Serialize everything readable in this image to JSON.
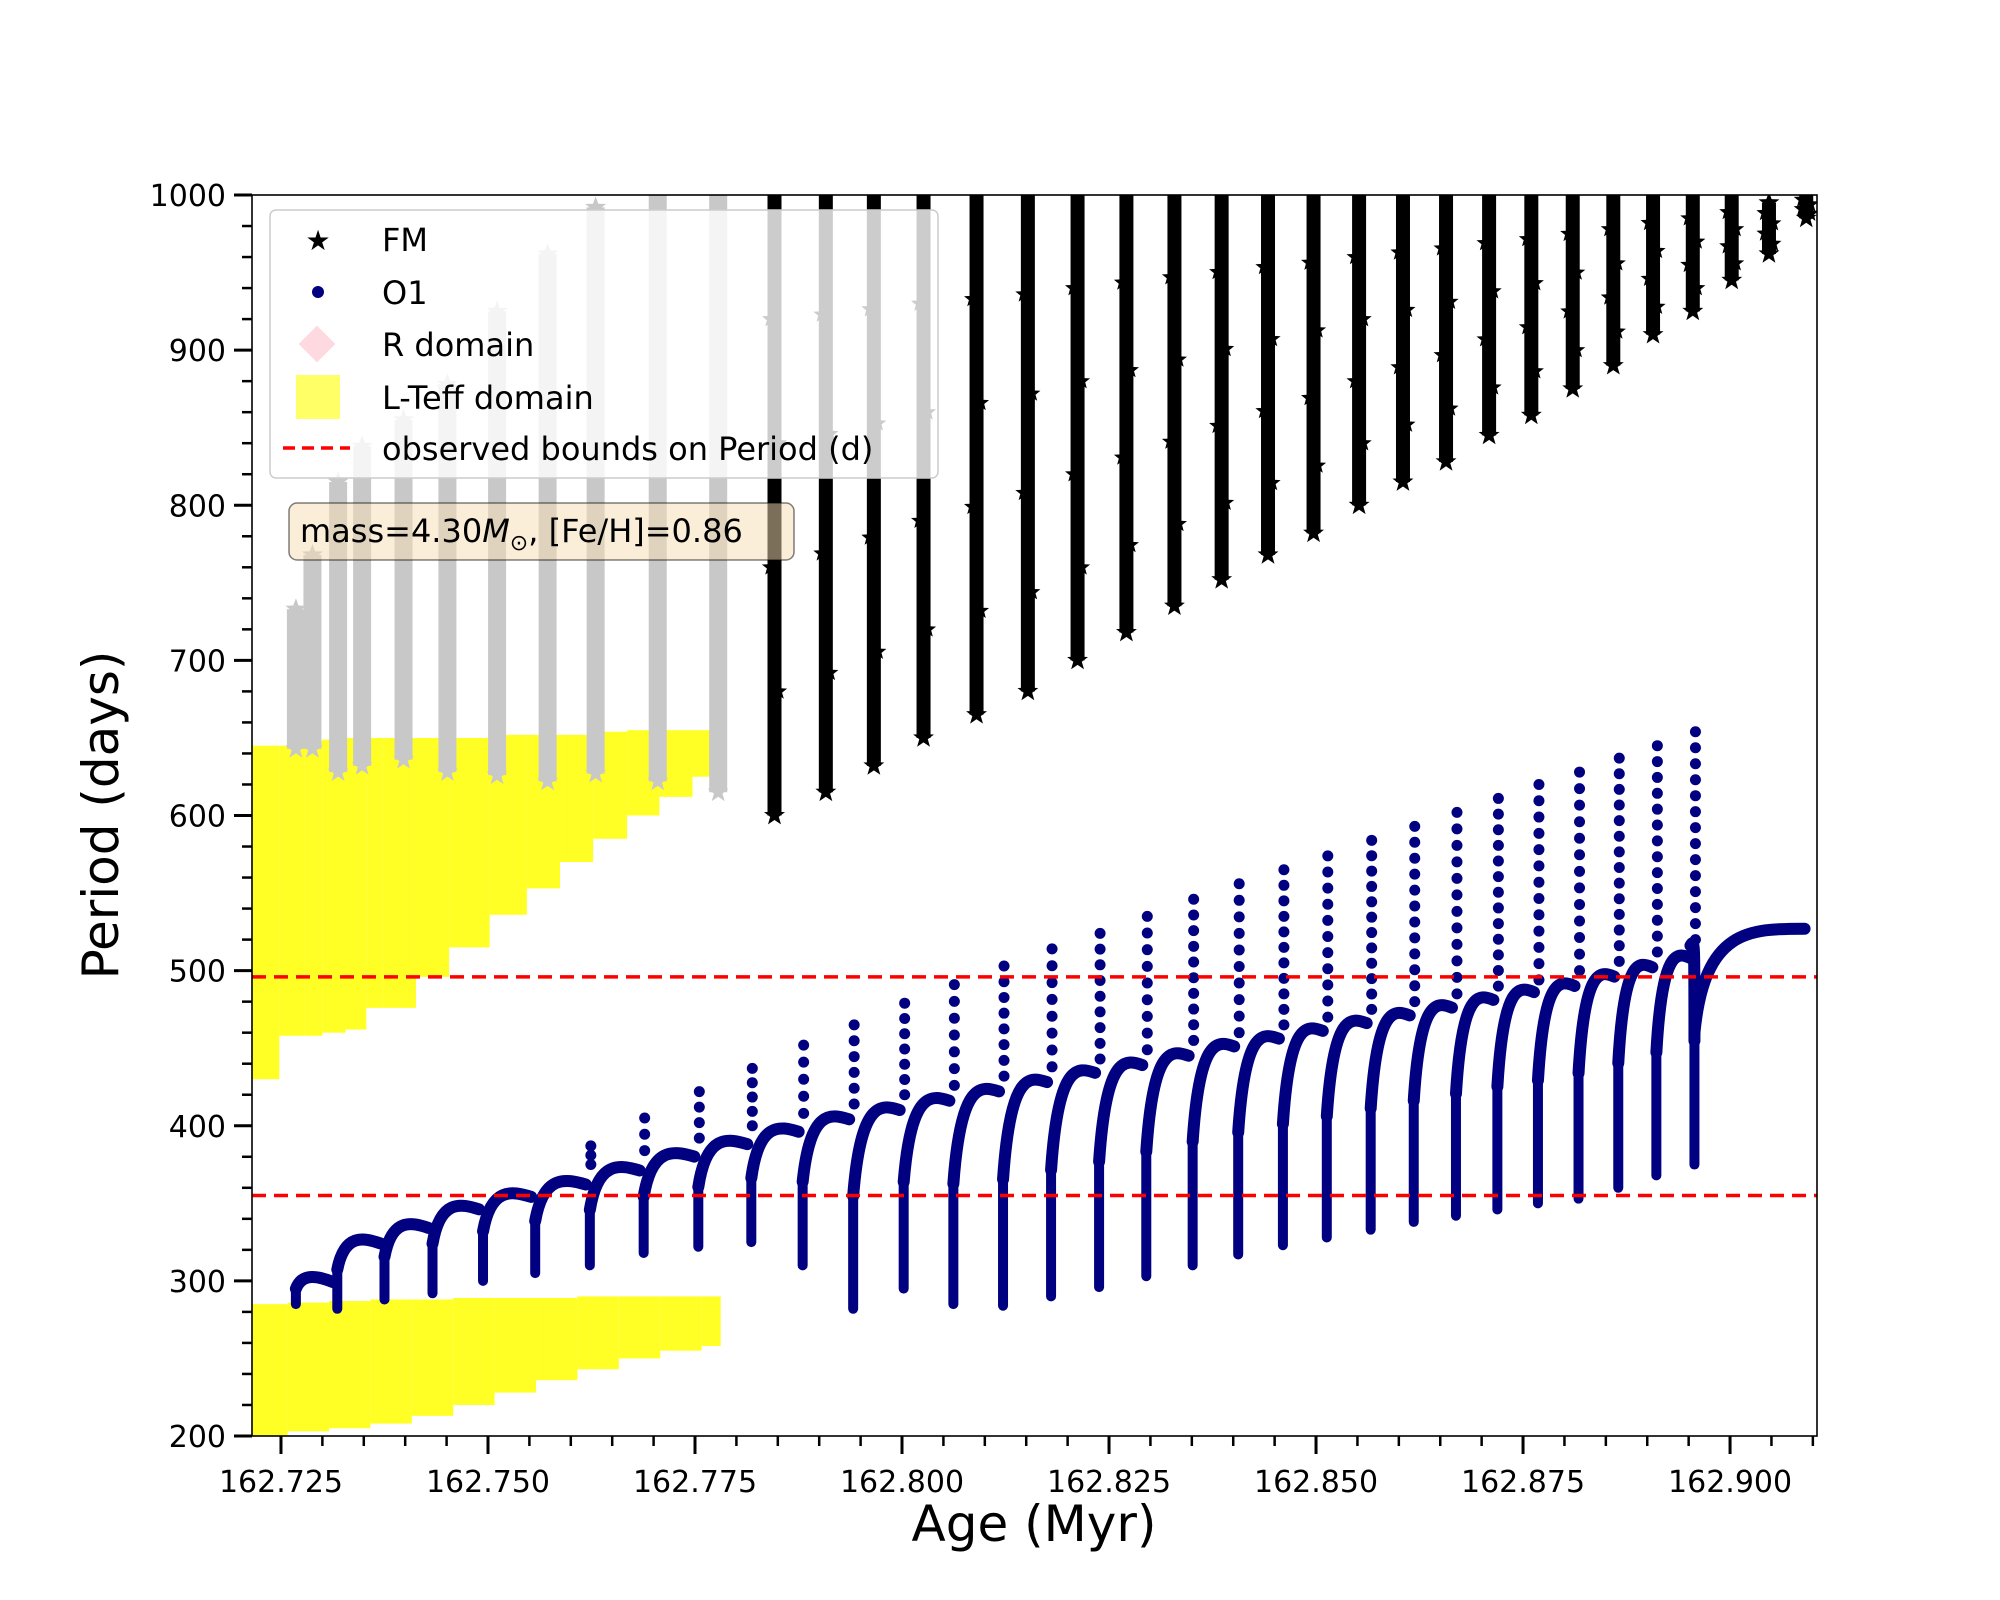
{
  "chart_data": {
    "type": "scatter",
    "title": "",
    "xlabel": "Age (Myr)",
    "ylabel": "Period (days)",
    "xlim": [
      162.7215,
      162.9105
    ],
    "ylim": [
      200,
      1000
    ],
    "x_ticks": [
      162.725,
      162.75,
      162.775,
      162.8,
      162.825,
      162.85,
      162.875,
      162.9
    ],
    "x_tick_labels": [
      "162.725",
      "162.750",
      "162.775",
      "162.800",
      "162.825",
      "162.850",
      "162.875",
      "162.900"
    ],
    "y_ticks": [
      200,
      300,
      400,
      500,
      600,
      700,
      800,
      900,
      1000
    ],
    "y_tick_labels": [
      "200",
      "300",
      "400",
      "500",
      "600",
      "700",
      "800",
      "900",
      "1000"
    ],
    "grid": false,
    "legend_placement": "upper-left",
    "legend": [
      "FM",
      "O1",
      "R domain",
      "L-Teff domain",
      "observed bounds on Period (d)"
    ],
    "annotation": {
      "prefix": "mass=4.30",
      "symbol": "M",
      "subscript": "⊙",
      "suffix": ", [Fe/H]=0.86"
    },
    "observed_bounds": [
      355,
      496
    ],
    "colors": {
      "fm": "#000000",
      "fm_in_domain": "#c8c8c8",
      "o1": "#000080",
      "lteff": "#ffff00",
      "bounds": "#ff0000",
      "r_domain": "#ffc0cb"
    },
    "series": [
      {
        "name": "FM",
        "marker": "star",
        "pulses": [
          {
            "age": 162.7268,
            "min": 643,
            "max": 733
          },
          {
            "age": 162.7288,
            "min": 643,
            "max": 768
          },
          {
            "age": 162.7319,
            "min": 628,
            "max": 815
          },
          {
            "age": 162.7348,
            "min": 632,
            "max": 838
          },
          {
            "age": 162.7398,
            "min": 636,
            "max": 855
          },
          {
            "age": 162.7451,
            "min": 628,
            "max": 878
          },
          {
            "age": 162.7511,
            "min": 626,
            "max": 925
          },
          {
            "age": 162.7572,
            "min": 622,
            "max": 962
          },
          {
            "age": 162.763,
            "min": 627,
            "max": 992
          },
          {
            "age": 162.7705,
            "min": 622,
            "max": 1000
          },
          {
            "age": 162.7778,
            "min": 615,
            "max": 1000
          },
          {
            "age": 162.7846,
            "min": 600,
            "max": 1000
          },
          {
            "age": 162.7908,
            "min": 615,
            "max": 1000
          },
          {
            "age": 162.7966,
            "min": 632,
            "max": 1000
          },
          {
            "age": 162.8026,
            "min": 650,
            "max": 1000
          },
          {
            "age": 162.809,
            "min": 665,
            "max": 1000
          },
          {
            "age": 162.8152,
            "min": 680,
            "max": 1000
          },
          {
            "age": 162.8212,
            "min": 700,
            "max": 1000
          },
          {
            "age": 162.8271,
            "min": 718,
            "max": 1000
          },
          {
            "age": 162.8329,
            "min": 735,
            "max": 1000
          },
          {
            "age": 162.8386,
            "min": 752,
            "max": 1000
          },
          {
            "age": 162.8442,
            "min": 768,
            "max": 1000
          },
          {
            "age": 162.8497,
            "min": 782,
            "max": 1000
          },
          {
            "age": 162.8552,
            "min": 800,
            "max": 1000
          },
          {
            "age": 162.8605,
            "min": 815,
            "max": 1000
          },
          {
            "age": 162.8657,
            "min": 828,
            "max": 1000
          },
          {
            "age": 162.8709,
            "min": 845,
            "max": 1000
          },
          {
            "age": 162.876,
            "min": 858,
            "max": 1000
          },
          {
            "age": 162.881,
            "min": 875,
            "max": 1000
          },
          {
            "age": 162.8859,
            "min": 890,
            "max": 1000
          },
          {
            "age": 162.8907,
            "min": 910,
            "max": 1000
          },
          {
            "age": 162.8955,
            "min": 925,
            "max": 1000
          },
          {
            "age": 162.9002,
            "min": 945,
            "max": 1000
          },
          {
            "age": 162.9047,
            "min": 962,
            "max": 995
          },
          {
            "age": 162.9092,
            "min": 985,
            "max": 1000
          }
        ]
      },
      {
        "name": "O1",
        "marker": "circle",
        "pulses": [
          {
            "age": 162.7268,
            "min": 285,
            "max": 303,
            "spike": 303
          },
          {
            "age": 162.7318,
            "min": 282,
            "max": 328,
            "spike": 328
          },
          {
            "age": 162.7375,
            "min": 288,
            "max": 338,
            "spike": 338
          },
          {
            "age": 162.7433,
            "min": 292,
            "max": 350,
            "spike": 350
          },
          {
            "age": 162.7494,
            "min": 300,
            "max": 358,
            "spike": 358
          },
          {
            "age": 162.7557,
            "min": 305,
            "max": 366,
            "spike": 366
          },
          {
            "age": 162.7623,
            "min": 310,
            "max": 375,
            "spike": 387
          },
          {
            "age": 162.7688,
            "min": 318,
            "max": 384,
            "spike": 405
          },
          {
            "age": 162.7754,
            "min": 322,
            "max": 392,
            "spike": 422
          },
          {
            "age": 162.7818,
            "min": 325,
            "max": 400,
            "spike": 437
          },
          {
            "age": 162.788,
            "min": 310,
            "max": 408,
            "spike": 452
          },
          {
            "age": 162.7941,
            "min": 282,
            "max": 414,
            "spike": 465
          },
          {
            "age": 162.8002,
            "min": 295,
            "max": 420,
            "spike": 479
          },
          {
            "age": 162.8062,
            "min": 285,
            "max": 426,
            "spike": 491
          },
          {
            "age": 162.8122,
            "min": 284,
            "max": 432,
            "spike": 503
          },
          {
            "age": 162.818,
            "min": 290,
            "max": 438,
            "spike": 514
          },
          {
            "age": 162.8238,
            "min": 296,
            "max": 443,
            "spike": 524
          },
          {
            "age": 162.8295,
            "min": 303,
            "max": 449,
            "spike": 535
          },
          {
            "age": 162.8351,
            "min": 310,
            "max": 455,
            "spike": 546
          },
          {
            "age": 162.8406,
            "min": 317,
            "max": 460,
            "spike": 556
          },
          {
            "age": 162.846,
            "min": 323,
            "max": 465,
            "spike": 565
          },
          {
            "age": 162.8513,
            "min": 328,
            "max": 470,
            "spike": 574
          },
          {
            "age": 162.8566,
            "min": 333,
            "max": 475,
            "spike": 584
          },
          {
            "age": 162.8618,
            "min": 338,
            "max": 480,
            "spike": 593
          },
          {
            "age": 162.8669,
            "min": 342,
            "max": 485,
            "spike": 602
          },
          {
            "age": 162.8719,
            "min": 346,
            "max": 490,
            "spike": 611
          },
          {
            "age": 162.8768,
            "min": 350,
            "max": 494,
            "spike": 620
          },
          {
            "age": 162.8817,
            "min": 353,
            "max": 500,
            "spike": 628
          },
          {
            "age": 162.8865,
            "min": 360,
            "max": 506,
            "spike": 637
          },
          {
            "age": 162.8911,
            "min": 368,
            "max": 512,
            "spike": 645
          },
          {
            "age": 162.8957,
            "min": 375,
            "max": 520,
            "spike": 654
          }
        ],
        "tail": {
          "start_age": 162.8957,
          "end_age": 162.909,
          "start_period": 500,
          "end_period": 527
        }
      }
    ],
    "lteff_domain": {
      "upper_blocks": [
        {
          "x0": 162.7215,
          "x1": 162.7248,
          "low": 430,
          "high": 645
        },
        {
          "x0": 162.7248,
          "x1": 162.7278,
          "low": 458,
          "high": 645
        },
        {
          "x0": 162.7278,
          "x1": 162.73,
          "low": 458,
          "high": 648
        },
        {
          "x0": 162.73,
          "x1": 162.7328,
          "low": 460,
          "high": 649
        },
        {
          "x0": 162.7328,
          "x1": 162.7353,
          "low": 462,
          "high": 650
        },
        {
          "x0": 162.7353,
          "x1": 162.7373,
          "low": 476,
          "high": 650
        },
        {
          "x0": 162.7373,
          "x1": 162.7413,
          "low": 476,
          "high": 650
        },
        {
          "x0": 162.7413,
          "x1": 162.7453,
          "low": 496,
          "high": 650
        },
        {
          "x0": 162.7453,
          "x1": 162.7502,
          "low": 515,
          "high": 650
        },
        {
          "x0": 162.7502,
          "x1": 162.7547,
          "low": 536,
          "high": 652
        },
        {
          "x0": 162.7547,
          "x1": 162.7587,
          "low": 553,
          "high": 652
        },
        {
          "x0": 162.7587,
          "x1": 162.7627,
          "low": 570,
          "high": 652
        },
        {
          "x0": 162.7627,
          "x1": 162.7668,
          "low": 585,
          "high": 654
        },
        {
          "x0": 162.7668,
          "x1": 162.7707,
          "low": 600,
          "high": 655
        },
        {
          "x0": 162.7707,
          "x1": 162.7747,
          "low": 612,
          "high": 655
        },
        {
          "x0": 162.7747,
          "x1": 162.7781,
          "low": 625,
          "high": 655
        }
      ],
      "lower_blocks": [
        {
          "x0": 162.7215,
          "x1": 162.7258,
          "low": 200,
          "high": 285
        },
        {
          "x0": 162.7258,
          "x1": 162.7308,
          "low": 203,
          "high": 286
        },
        {
          "x0": 162.7308,
          "x1": 162.7358,
          "low": 205,
          "high": 287
        },
        {
          "x0": 162.7358,
          "x1": 162.7408,
          "low": 208,
          "high": 288
        },
        {
          "x0": 162.7408,
          "x1": 162.7458,
          "low": 213,
          "high": 288
        },
        {
          "x0": 162.7458,
          "x1": 162.7508,
          "low": 220,
          "high": 289
        },
        {
          "x0": 162.7508,
          "x1": 162.7558,
          "low": 228,
          "high": 289
        },
        {
          "x0": 162.7558,
          "x1": 162.7608,
          "low": 236,
          "high": 289
        },
        {
          "x0": 162.7608,
          "x1": 162.7658,
          "low": 243,
          "high": 290
        },
        {
          "x0": 162.7658,
          "x1": 162.7708,
          "low": 250,
          "high": 290
        },
        {
          "x0": 162.7708,
          "x1": 162.7758,
          "low": 255,
          "high": 290
        },
        {
          "x0": 162.7758,
          "x1": 162.7781,
          "low": 258,
          "high": 290
        }
      ]
    }
  }
}
